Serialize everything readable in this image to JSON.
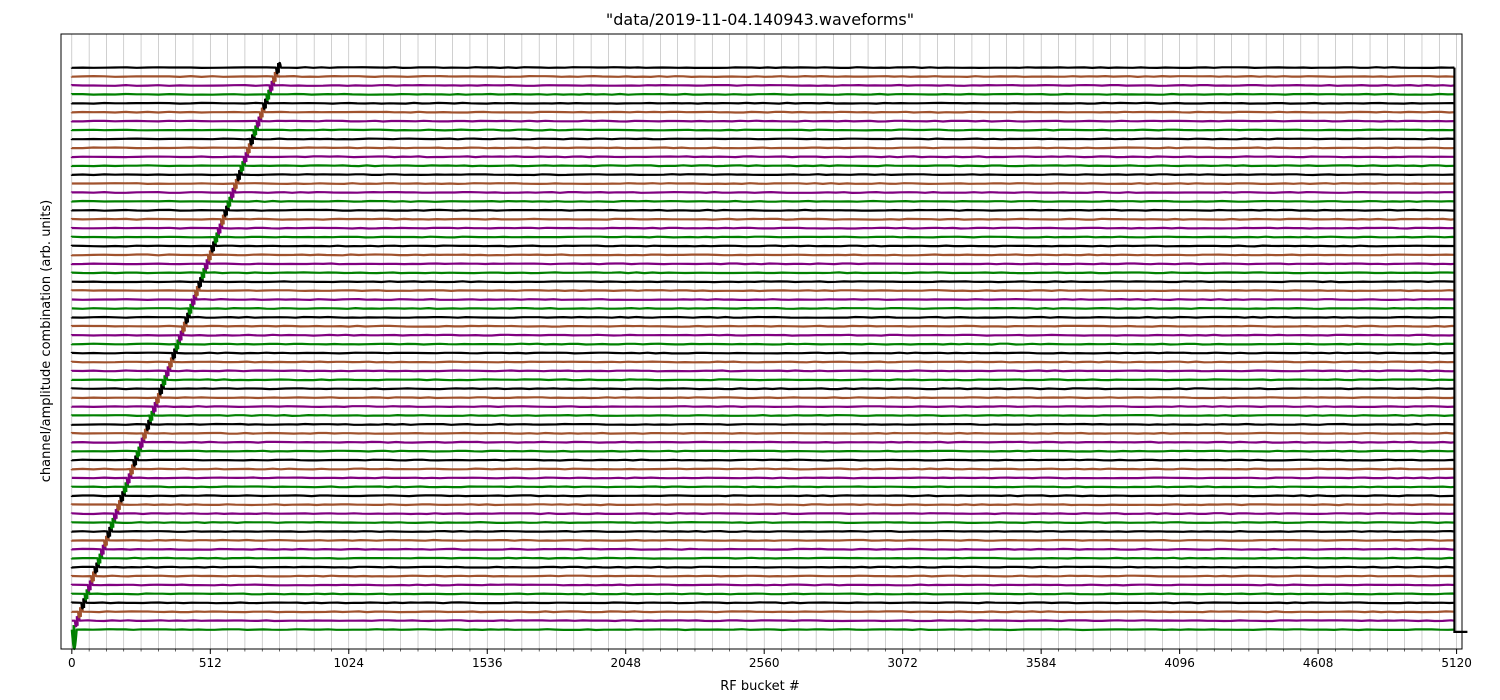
{
  "chart_data": {
    "type": "line",
    "title": "\"data/2019-11-04.140943.waveforms\"",
    "xlabel": "RF bucket #",
    "ylabel": "channel/amplitude combination (arb. units)",
    "xlim": [
      -40,
      5140
    ],
    "x_ticks": [
      0,
      512,
      1024,
      1536,
      2048,
      2560,
      3072,
      3584,
      4096,
      4608,
      5120
    ],
    "minor_tick_step": 64,
    "ylim": [
      -0.3,
      9.2
    ],
    "y_ticks": [],
    "grid": true,
    "grid_axis": "x",
    "legend": "none",
    "trace_count": 64,
    "trace_spacing": 0.1378,
    "trace_x_range": [
      0,
      5112
    ],
    "end_step_x": 5112,
    "end_step_to_x": 5160,
    "color_cycle": [
      "#008000",
      "#800080",
      "#a0522d",
      "#000000"
    ],
    "colors": {
      "green": "#008000",
      "purple": "#800080",
      "sienna": "#a0522d",
      "black": "#000000",
      "grid": "#b0b0b0"
    },
    "pulse": {
      "first_x": 8,
      "step_x": 12,
      "width_x": 18,
      "first_amplitude_down": 0.3,
      "overshoot_up": 0.15
    }
  }
}
